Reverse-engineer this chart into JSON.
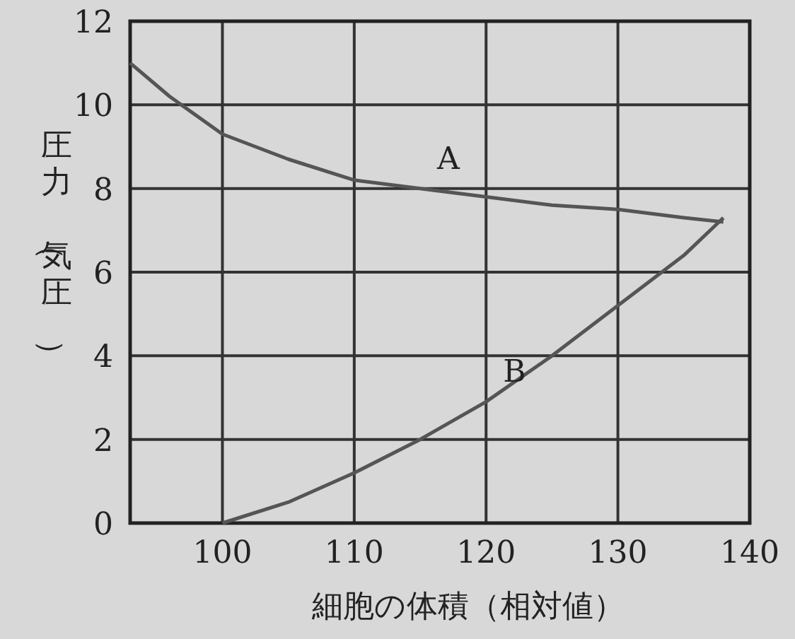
{
  "chart_data": {
    "type": "line",
    "xlabel": "細胞の体積（相対値）",
    "ylabel": "圧力（気圧）",
    "xlim": [
      93,
      140
    ],
    "ylim": [
      0,
      12
    ],
    "xticks": [
      100,
      110,
      120,
      130,
      140
    ],
    "yticks": [
      0,
      2,
      4,
      6,
      8,
      10,
      12
    ],
    "grid": true,
    "line_style": "solid",
    "series": [
      {
        "name": "A",
        "color": "#555555",
        "x": [
          93,
          96,
          100,
          105,
          110,
          115,
          120,
          125,
          130,
          135,
          138
        ],
        "values": [
          11.0,
          10.2,
          9.3,
          8.7,
          8.2,
          8.0,
          7.8,
          7.6,
          7.5,
          7.3,
          7.2
        ]
      },
      {
        "name": "B",
        "color": "#555555",
        "x": [
          100,
          105,
          110,
          115,
          120,
          125,
          130,
          135,
          138
        ],
        "values": [
          0,
          0.5,
          1.2,
          2.0,
          2.9,
          4.0,
          5.2,
          6.4,
          7.3
        ]
      }
    ]
  }
}
